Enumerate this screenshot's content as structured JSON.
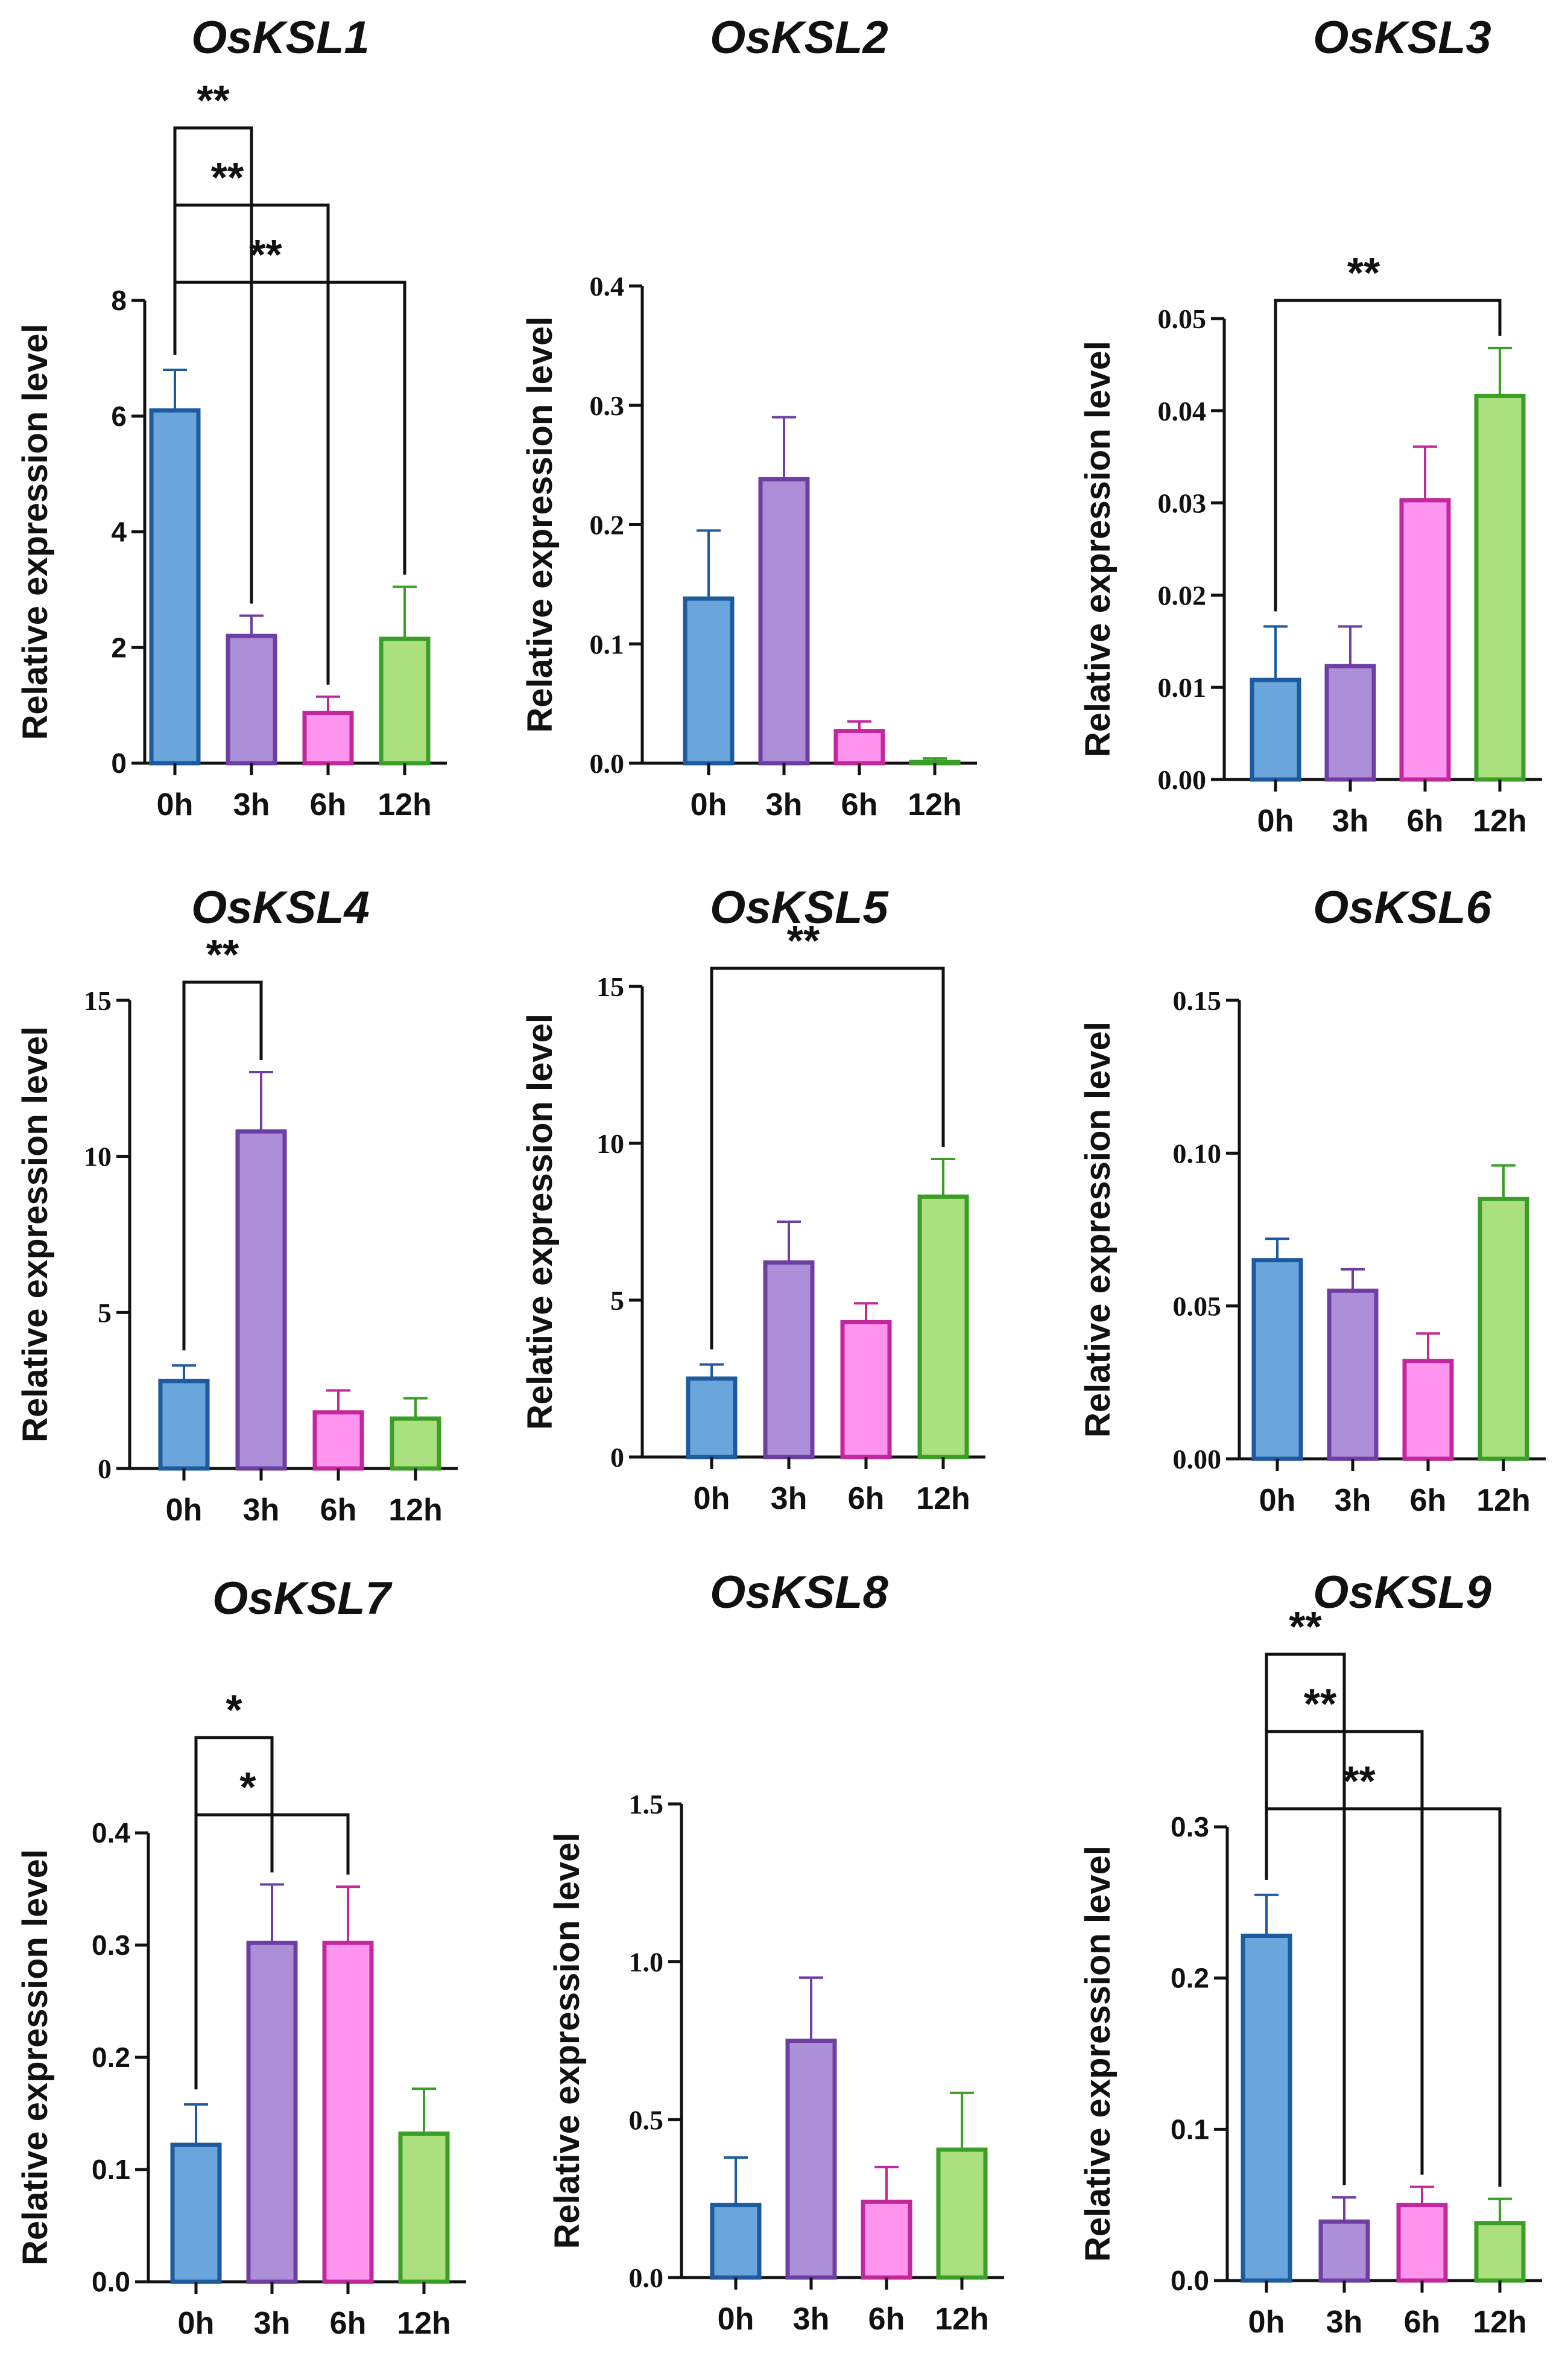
{
  "figure": {
    "ylabel": "Relative expression level",
    "categories": [
      "0h",
      "3h",
      "6h",
      "12h"
    ]
  },
  "styles": {
    "bar_fill": [
      "#6aa5dc",
      "#ad8ed8",
      "#fe94ee",
      "#abe07e"
    ],
    "bar_stroke": [
      "#1d5a9e",
      "#6d3fa3",
      "#c2289d",
      "#3b9e26"
    ],
    "axis_color": "#111111"
  },
  "chart_data": [
    {
      "type": "bar",
      "title": "OsKSL1",
      "ylabel": "Relative expression level",
      "categories": [
        "0h",
        "3h",
        "6h",
        "12h"
      ],
      "values": [
        6.1,
        2.2,
        0.87,
        2.15
      ],
      "errors": [
        0.7,
        0.35,
        0.28,
        0.9
      ],
      "ylim": [
        0,
        8
      ],
      "yticks": [
        "0",
        "2",
        "4",
        "6",
        "8"
      ],
      "tick_font": "sans",
      "significance": [
        {
          "from": 0,
          "to": 1,
          "label": "**"
        },
        {
          "from": 0,
          "to": 2,
          "label": "**"
        },
        {
          "from": 0,
          "to": 3,
          "label": "**"
        }
      ]
    },
    {
      "type": "bar",
      "title": "OsKSL2",
      "ylabel": "Relative expression level",
      "categories": [
        "0h",
        "3h",
        "6h",
        "12h"
      ],
      "values": [
        0.138,
        0.238,
        0.027,
        0.001
      ],
      "errors": [
        0.057,
        0.052,
        0.008,
        0.003
      ],
      "ylim": [
        0,
        0.4
      ],
      "yticks": [
        "0.0",
        "0.1",
        "0.2",
        "0.3",
        "0.4"
      ],
      "tick_font": "serif",
      "significance": []
    },
    {
      "type": "bar",
      "title": "OsKSL3",
      "ylabel": "Relative expression level",
      "categories": [
        "0h",
        "3h",
        "6h",
        "12h"
      ],
      "values": [
        0.0108,
        0.0123,
        0.0303,
        0.0416
      ],
      "errors": [
        0.0058,
        0.0043,
        0.0058,
        0.0052
      ],
      "ylim": [
        0,
        0.05
      ],
      "yticks": [
        "0.00",
        "0.01",
        "0.02",
        "0.03",
        "0.04",
        "0.05"
      ],
      "tick_font": "serif",
      "significance": [
        {
          "from": 0,
          "to": 3,
          "label": "**"
        }
      ]
    },
    {
      "type": "bar",
      "title": "OsKSL4",
      "ylabel": "Relative expression level",
      "categories": [
        "0h",
        "3h",
        "6h",
        "12h"
      ],
      "values": [
        2.8,
        10.8,
        1.8,
        1.6
      ],
      "errors": [
        0.5,
        1.9,
        0.7,
        0.65
      ],
      "ylim": [
        0,
        15
      ],
      "yticks": [
        "0",
        "5",
        "10",
        "15"
      ],
      "tick_font": "serif",
      "significance": [
        {
          "from": 0,
          "to": 1,
          "label": "**"
        }
      ]
    },
    {
      "type": "bar",
      "title": "OsKSL5",
      "ylabel": "Relative expression level",
      "categories": [
        "0h",
        "3h",
        "6h",
        "12h"
      ],
      "values": [
        2.5,
        6.2,
        4.3,
        8.3
      ],
      "errors": [
        0.45,
        1.3,
        0.6,
        1.2
      ],
      "ylim": [
        0,
        15
      ],
      "yticks": [
        "0",
        "5",
        "10",
        "15"
      ],
      "tick_font": "serif",
      "significance": [
        {
          "from": 0,
          "to": 3,
          "label": "**"
        }
      ]
    },
    {
      "type": "bar",
      "title": "OsKSL6",
      "ylabel": "Relative expression level",
      "categories": [
        "0h",
        "3h",
        "6h",
        "12h"
      ],
      "values": [
        0.065,
        0.055,
        0.032,
        0.085
      ],
      "errors": [
        0.007,
        0.007,
        0.009,
        0.011
      ],
      "ylim": [
        0,
        0.15
      ],
      "yticks": [
        "0.00",
        "0.05",
        "0.10",
        "0.15"
      ],
      "tick_font": "serif",
      "significance": []
    },
    {
      "type": "bar",
      "title": "OsKSL7",
      "ylabel": "Relative expression level",
      "categories": [
        "0h",
        "3h",
        "6h",
        "12h"
      ],
      "values": [
        0.122,
        0.302,
        0.302,
        0.132
      ],
      "errors": [
        0.036,
        0.052,
        0.05,
        0.04
      ],
      "ylim": [
        0,
        0.4
      ],
      "yticks": [
        "0.0",
        "0.1",
        "0.2",
        "0.3",
        "0.4"
      ],
      "tick_font": "sans",
      "significance": [
        {
          "from": 0,
          "to": 1,
          "label": "*"
        },
        {
          "from": 0,
          "to": 2,
          "label": "*"
        }
      ]
    },
    {
      "type": "bar",
      "title": "OsKSL8",
      "ylabel": "Relative expression level",
      "categories": [
        "0h",
        "3h",
        "6h",
        "12h"
      ],
      "values": [
        0.23,
        0.75,
        0.24,
        0.405
      ],
      "errors": [
        0.15,
        0.2,
        0.11,
        0.18
      ],
      "ylim": [
        0,
        1.5
      ],
      "yticks": [
        "0.0",
        "0.5",
        "1.0",
        "1.5"
      ],
      "tick_font": "serif",
      "significance": []
    },
    {
      "type": "bar",
      "title": "OsKSL9",
      "ylabel": "Relative expression level",
      "categories": [
        "0h",
        "3h",
        "6h",
        "12h"
      ],
      "values": [
        0.228,
        0.039,
        0.05,
        0.038
      ],
      "errors": [
        0.027,
        0.016,
        0.012,
        0.016
      ],
      "ylim": [
        0,
        0.3
      ],
      "yticks": [
        "0.0",
        "0.1",
        "0.2",
        "0.3"
      ],
      "tick_font": "sans",
      "significance": [
        {
          "from": 0,
          "to": 1,
          "label": "**"
        },
        {
          "from": 0,
          "to": 2,
          "label": "**"
        },
        {
          "from": 0,
          "to": 3,
          "label": "**"
        }
      ]
    }
  ]
}
